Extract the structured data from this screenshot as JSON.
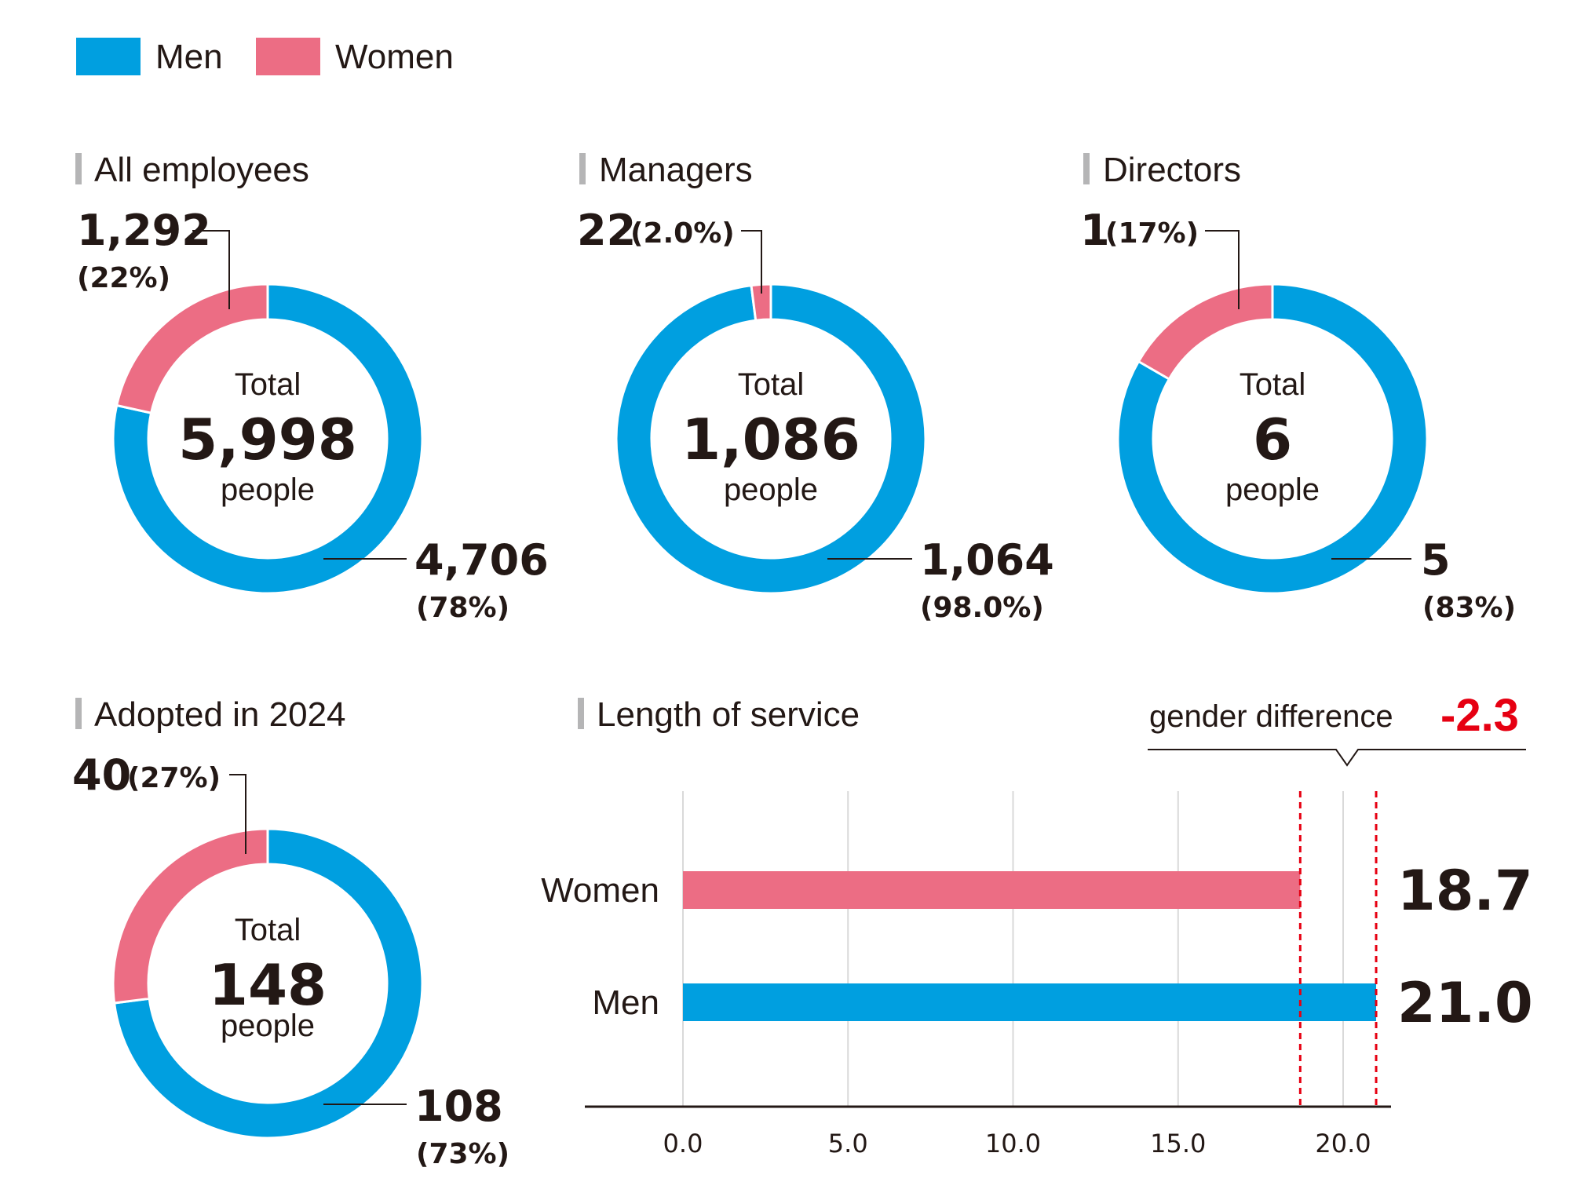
{
  "legend": {
    "men": {
      "label": "Men",
      "color": "#009fe0"
    },
    "women": {
      "label": "Women",
      "color": "#ec6d84"
    }
  },
  "chart_data": [
    {
      "type": "pie",
      "title": "All employees",
      "center_label": "Total",
      "total": "5,998",
      "unit": "people",
      "slices": [
        {
          "name": "Men",
          "value": 4706,
          "label": "4,706",
          "pct": "(78%)",
          "color": "#009fe0"
        },
        {
          "name": "Women",
          "value": 1292,
          "label": "1,292",
          "pct": "(22%)",
          "color": "#ec6d84"
        }
      ]
    },
    {
      "type": "pie",
      "title": "Managers",
      "center_label": "Total",
      "total": "1,086",
      "unit": "people",
      "slices": [
        {
          "name": "Men",
          "value": 1064,
          "label": "1,064",
          "pct": "(98.0%)",
          "color": "#009fe0"
        },
        {
          "name": "Women",
          "value": 22,
          "label": "22",
          "pct": "(2.0%)",
          "color": "#ec6d84"
        }
      ]
    },
    {
      "type": "pie",
      "title": "Directors",
      "center_label": "Total",
      "total": "6",
      "unit": "people",
      "slices": [
        {
          "name": "Men",
          "value": 5,
          "label": "5",
          "pct": "(83%)",
          "color": "#009fe0"
        },
        {
          "name": "Women",
          "value": 1,
          "label": "1",
          "pct": "(17%)",
          "color": "#ec6d84"
        }
      ]
    },
    {
      "type": "pie",
      "title": "Adopted in 2024",
      "center_label": "Total",
      "total": "148",
      "unit": "people",
      "slices": [
        {
          "name": "Men",
          "value": 108,
          "label": "108",
          "pct": "(73%)",
          "color": "#009fe0"
        },
        {
          "name": "Women",
          "value": 40,
          "label": "40",
          "pct": "(27%)",
          "color": "#ec6d84"
        }
      ]
    },
    {
      "type": "bar",
      "orientation": "horizontal",
      "title": "Length of service",
      "categories": [
        "Women",
        "Men"
      ],
      "values": [
        18.7,
        21.0
      ],
      "value_labels": [
        "18.7",
        "21.0"
      ],
      "colors": [
        "#ec6d84",
        "#009fe0"
      ],
      "xlim": [
        0,
        21.5
      ],
      "xticks": [
        0,
        5,
        10,
        15,
        20
      ],
      "xtick_labels": [
        "0.0",
        "5.0",
        "10.0",
        "15.0",
        "20.0"
      ],
      "grid": true,
      "annotation": {
        "label": "gender difference",
        "value": "-2.3",
        "color": "#e60012"
      }
    }
  ]
}
